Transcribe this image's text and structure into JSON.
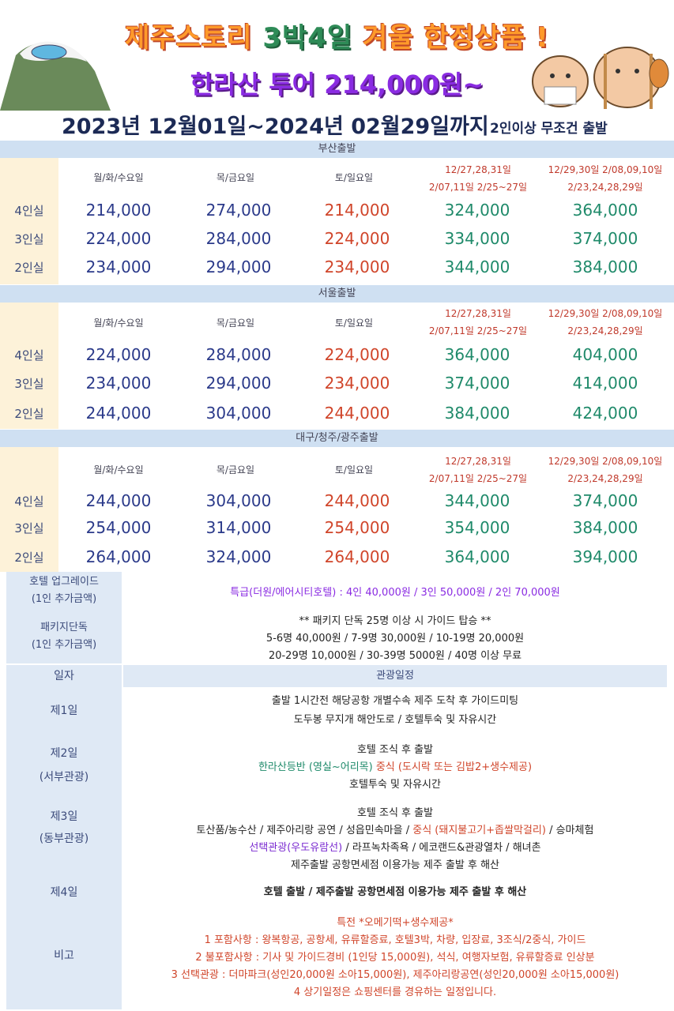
{
  "header": {
    "title1_a": "제주스토리 ",
    "title1_b": "3박4일",
    "title1_c": " 겨울 한정상품 !",
    "title2": "한라산 투어 214,000원~",
    "period": "2023년 12월01일~2024년 02월29일까지",
    "condition": "2인이상 무조건 출발"
  },
  "price_head": {
    "col1": "월/화/수요일",
    "col2": "목/금요일",
    "col3": "토/일요일",
    "col4_l1": "12/27,28,31일",
    "col4_l2": "2/07,11일  2/25~27일",
    "col5_l1": "12/29,30일  2/08,09,10일",
    "col5_l2": "2/23,24,28,29일"
  },
  "rooms": [
    "4인실",
    "3인실",
    "2인실"
  ],
  "sections": [
    {
      "name": "부산출발",
      "rows": [
        [
          "214,000",
          "274,000",
          "214,000",
          "324,000",
          "364,000"
        ],
        [
          "224,000",
          "284,000",
          "224,000",
          "334,000",
          "374,000"
        ],
        [
          "234,000",
          "294,000",
          "234,000",
          "344,000",
          "384,000"
        ]
      ]
    },
    {
      "name": "서울출발",
      "rows": [
        [
          "224,000",
          "284,000",
          "224,000",
          "364,000",
          "404,000"
        ],
        [
          "234,000",
          "294,000",
          "234,000",
          "374,000",
          "414,000"
        ],
        [
          "244,000",
          "304,000",
          "244,000",
          "384,000",
          "424,000"
        ]
      ]
    },
    {
      "name": "대구/청주/광주출발",
      "rows": [
        [
          "244,000",
          "304,000",
          "244,000",
          "344,000",
          "374,000"
        ],
        [
          "254,000",
          "314,000",
          "254,000",
          "354,000",
          "384,000"
        ],
        [
          "264,000",
          "324,000",
          "264,000",
          "364,000",
          "394,000"
        ]
      ]
    }
  ],
  "info": {
    "hotel_label_1": "호텔 업그레이드",
    "hotel_label_2": "(1인 추가금액)",
    "hotel_text": "특급(더원/에어시티호텔) : 4인 40,000원 / 3인 50,000원 / 2인 70,000원",
    "pkg_label_1": "패키지단독",
    "pkg_label_2": "(1인 추가금액)",
    "pkg_l1": "** 패키지 단독 25명 이상 시 가이드 탑승 **",
    "pkg_l2": "5-6명 40,000원 / 7-9명 30,000원 / 10-19명 20,000원",
    "pkg_l3": "20-29명 10,000원 / 30-39명 5000원 / 40명 이상 무료"
  },
  "itinerary": {
    "head_left": "일자",
    "head_right": "관광일정",
    "day1": "제1일",
    "day1_l1": "출발 1시간전 해당공항 개별수속 제주 도착 후 가이드미팅",
    "day1_l2": "도두봉 무지개 해안도로 / 호텔투숙 및 자유시간",
    "day2": "제2일",
    "day2_sub": "(서부관광)",
    "day2_l1": "호텔 조식 후 출발",
    "day2_l2a": "한라산등반 (영실~어리목)",
    "day2_l2b": "  중식 (도시락 또는 김밥2+생수제공)",
    "day2_l3": "호텔투숙 및 자유시간",
    "day3": "제3일",
    "day3_sub": "(동부관광)",
    "day3_l1": "호텔 조식 후 출발",
    "day3_l2a": "토산품/농수산 / 제주아리랑 공연 / 성읍민속마을 / ",
    "day3_l2b": "중식 (돼지불고기+좁쌀막걸리)",
    "day3_l2c": " / 승마체험",
    "day3_l3a": "선택관광(우도유람선)",
    "day3_l3b": " / 라프녹차족욕 / 에코랜드&관광열차 / 해녀촌",
    "day3_l4": "제주출발 공항면세점 이용가능 제주 출발 후 해산",
    "day4": "제4일",
    "day4_l1": "호텔 출발 / 제주출발 공항면세점 이용가능 제주 출발 후 해산",
    "note_label": "비고",
    "note_l1": "특전 *오메기떡+생수제공*",
    "note_l2": "1 포함사항 : 왕복항공, 공항세, 유류할증료, 호텔3박, 차량, 입장료, 3조식/2중식, 가이드",
    "note_l3": "2 불포함사항 : 기사 및 가이드경비 (1인당 15,000원), 석식, 여행자보험, 유류할증료 인상분",
    "note_l4": "3 선택관광 : 더마파크(성인20,000원 소아15,000원), 제주아리랑공연(성인20,000원 소아15,000원)",
    "note_l5": "4 상기일정은 쇼핑센터를 경유하는 일정입니다."
  }
}
